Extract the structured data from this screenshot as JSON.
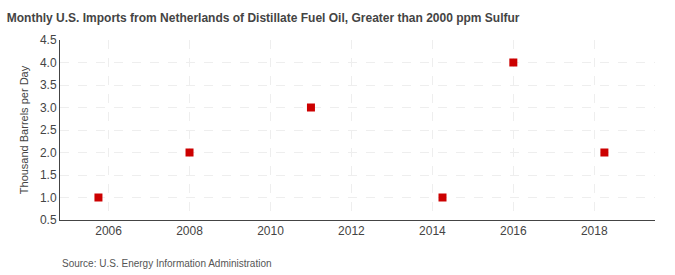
{
  "chart_data": {
    "type": "scatter",
    "title": "Monthly U.S. Imports from Netherlands of Distillate Fuel Oil, Greater than 2000 ppm Sulfur",
    "y_label": "Thousand Barrels per Day",
    "annotations": [
      "Source: U.S. Energy Information Administration"
    ],
    "x": [
      2005.75,
      2008.0,
      2011.0,
      2014.25,
      2016.0,
      2018.25
    ],
    "values": [
      1.0,
      2.0,
      3.0,
      1.0,
      4.0,
      2.0
    ],
    "color": "#cc0000",
    "marker": "square",
    "xlim": [
      2004.8,
      2019.5
    ],
    "ylim": [
      0.5,
      4.5
    ],
    "xticks": [
      2006,
      2008,
      2010,
      2012,
      2014,
      2016,
      2018
    ],
    "yticks": [
      0.5,
      {
        "value": 1.0,
        "label": "1.0"
      },
      1.5,
      {
        "value": 2.0,
        "label": "2.0"
      },
      2.5,
      {
        "value": 3.0,
        "label": "3.0"
      },
      3.5,
      {
        "value": 4.0,
        "label": "4.0"
      },
      4.5
    ],
    "grid": true
  }
}
